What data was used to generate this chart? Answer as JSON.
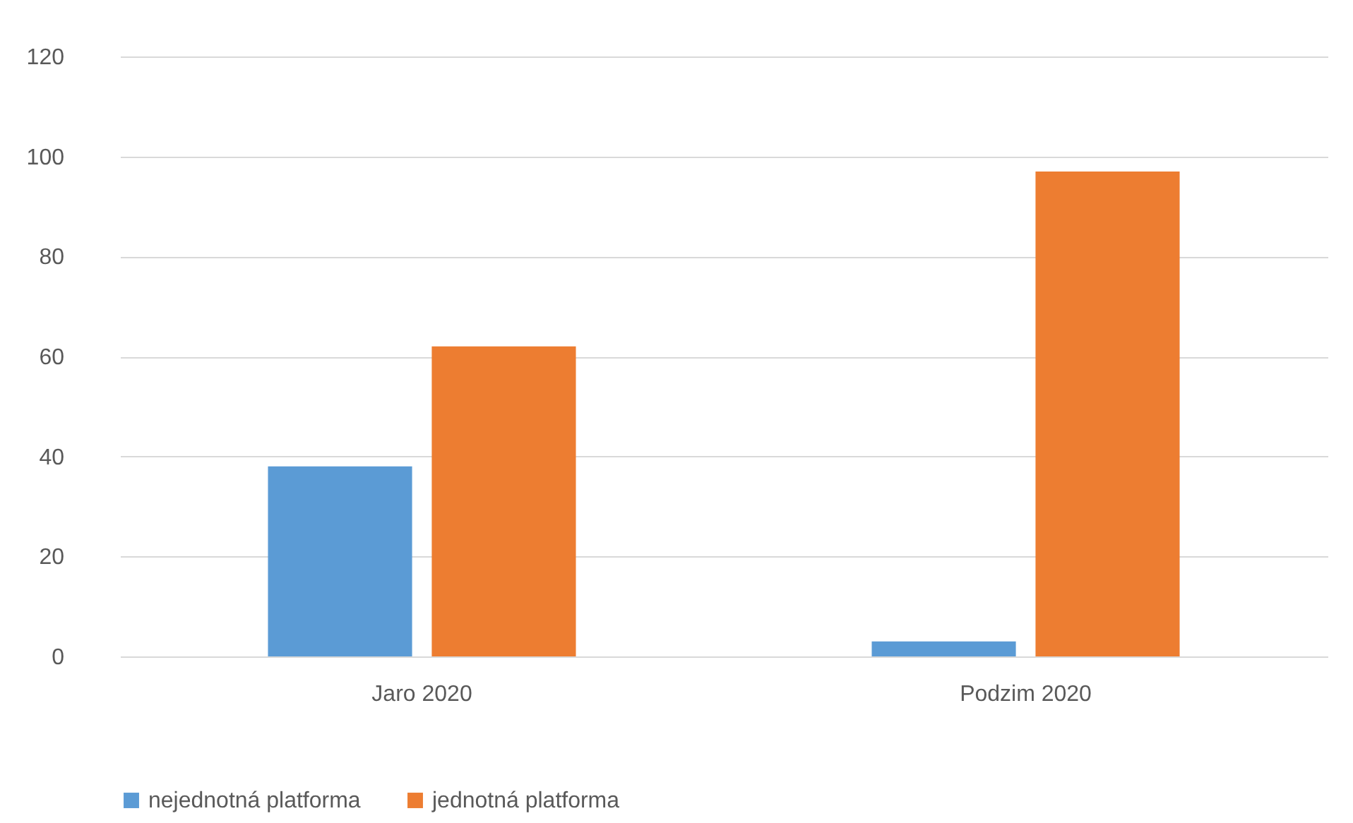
{
  "chart_data": {
    "type": "bar",
    "categories": [
      "Jaro 2020",
      "Podzim 2020"
    ],
    "series": [
      {
        "name": "nejednotná platforma",
        "color": "#5b9bd5",
        "values": [
          38,
          3
        ]
      },
      {
        "name": "jednotná platforma",
        "color": "#ed7d31",
        "values": [
          62,
          97
        ]
      }
    ],
    "ylim": [
      0,
      120
    ],
    "yticks": [
      0,
      20,
      40,
      60,
      80,
      100,
      120
    ],
    "grid": "y",
    "legend": "bottom"
  }
}
